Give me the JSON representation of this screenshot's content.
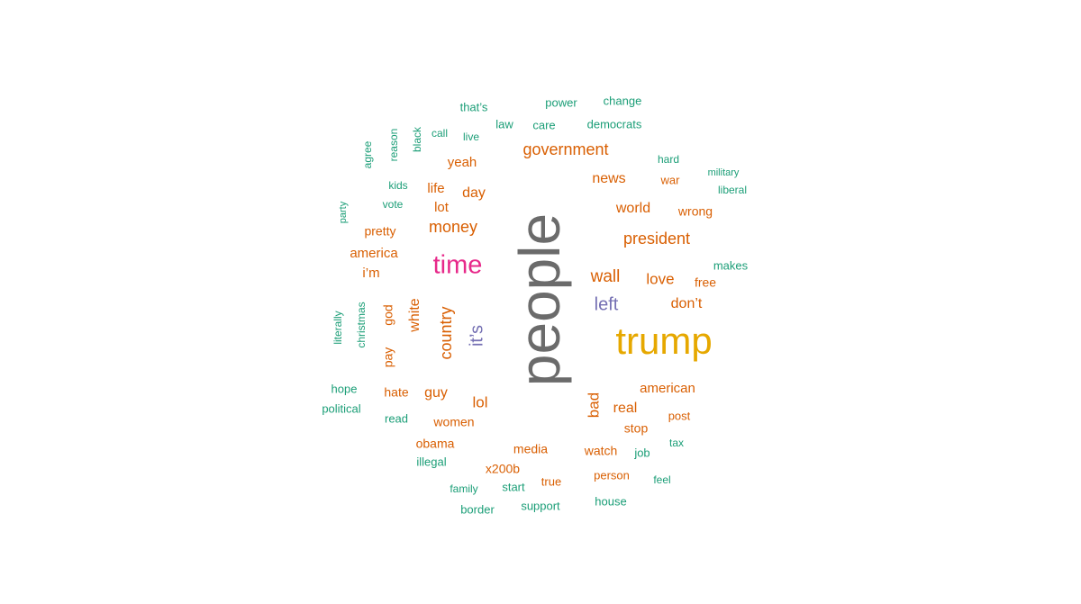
{
  "palette": {
    "gray": "#6b6b6b",
    "gold": "#e6a800",
    "magenta": "#e7298a",
    "purple": "#7570b3",
    "orange": "#d95f02",
    "teal": "#1b9e77"
  },
  "words": [
    {
      "text": "people",
      "color": "gray"
    },
    {
      "text": "trump",
      "color": "gold"
    },
    {
      "text": "time",
      "color": "magenta"
    },
    {
      "text": "it’s",
      "color": "purple"
    },
    {
      "text": "left",
      "color": "purple"
    },
    {
      "text": "country",
      "color": "orange"
    },
    {
      "text": "government",
      "color": "orange"
    },
    {
      "text": "president",
      "color": "orange"
    },
    {
      "text": "money",
      "color": "orange"
    },
    {
      "text": "wall",
      "color": "orange"
    },
    {
      "text": "white",
      "color": "orange"
    },
    {
      "text": "world",
      "color": "orange"
    },
    {
      "text": "news",
      "color": "orange"
    },
    {
      "text": "love",
      "color": "orange"
    },
    {
      "text": "don’t",
      "color": "orange"
    },
    {
      "text": "bad",
      "color": "orange"
    },
    {
      "text": "real",
      "color": "orange"
    },
    {
      "text": "guy",
      "color": "orange"
    },
    {
      "text": "lol",
      "color": "orange"
    },
    {
      "text": "day",
      "color": "orange"
    },
    {
      "text": "yeah",
      "color": "orange"
    },
    {
      "text": "life",
      "color": "orange"
    },
    {
      "text": "lot",
      "color": "orange"
    },
    {
      "text": "american",
      "color": "orange"
    },
    {
      "text": "america",
      "color": "orange"
    },
    {
      "text": "pretty",
      "color": "orange"
    },
    {
      "text": "i’m",
      "color": "orange"
    },
    {
      "text": "god",
      "color": "orange"
    },
    {
      "text": "pay",
      "color": "orange"
    },
    {
      "text": "wrong",
      "color": "orange"
    },
    {
      "text": "war",
      "color": "orange"
    },
    {
      "text": "free",
      "color": "orange"
    },
    {
      "text": "women",
      "color": "orange"
    },
    {
      "text": "hate",
      "color": "orange"
    },
    {
      "text": "obama",
      "color": "orange"
    },
    {
      "text": "media",
      "color": "orange"
    },
    {
      "text": "x200b",
      "color": "orange"
    },
    {
      "text": "watch",
      "color": "orange"
    },
    {
      "text": "stop",
      "color": "orange"
    },
    {
      "text": "post",
      "color": "orange"
    },
    {
      "text": "person",
      "color": "orange"
    },
    {
      "text": "true",
      "color": "orange"
    },
    {
      "text": "power",
      "color": "teal"
    },
    {
      "text": "change",
      "color": "teal"
    },
    {
      "text": "that’s",
      "color": "teal"
    },
    {
      "text": "law",
      "color": "teal"
    },
    {
      "text": "care",
      "color": "teal"
    },
    {
      "text": "democrats",
      "color": "teal"
    },
    {
      "text": "call",
      "color": "teal"
    },
    {
      "text": "live",
      "color": "teal"
    },
    {
      "text": "black",
      "color": "teal"
    },
    {
      "text": "reason",
      "color": "teal"
    },
    {
      "text": "agree",
      "color": "teal"
    },
    {
      "text": "kids",
      "color": "teal"
    },
    {
      "text": "vote",
      "color": "teal"
    },
    {
      "text": "party",
      "color": "teal"
    },
    {
      "text": "hard",
      "color": "teal"
    },
    {
      "text": "military",
      "color": "teal"
    },
    {
      "text": "liberal",
      "color": "teal"
    },
    {
      "text": "makes",
      "color": "teal"
    },
    {
      "text": "literally",
      "color": "teal"
    },
    {
      "text": "christmas",
      "color": "teal"
    },
    {
      "text": "hope",
      "color": "teal"
    },
    {
      "text": "political",
      "color": "teal"
    },
    {
      "text": "read",
      "color": "teal"
    },
    {
      "text": "illegal",
      "color": "teal"
    },
    {
      "text": "family",
      "color": "teal"
    },
    {
      "text": "start",
      "color": "teal"
    },
    {
      "text": "border",
      "color": "teal"
    },
    {
      "text": "support",
      "color": "teal"
    },
    {
      "text": "house",
      "color": "teal"
    },
    {
      "text": "job",
      "color": "teal"
    },
    {
      "text": "tax",
      "color": "teal"
    },
    {
      "text": "feel",
      "color": "teal"
    }
  ]
}
